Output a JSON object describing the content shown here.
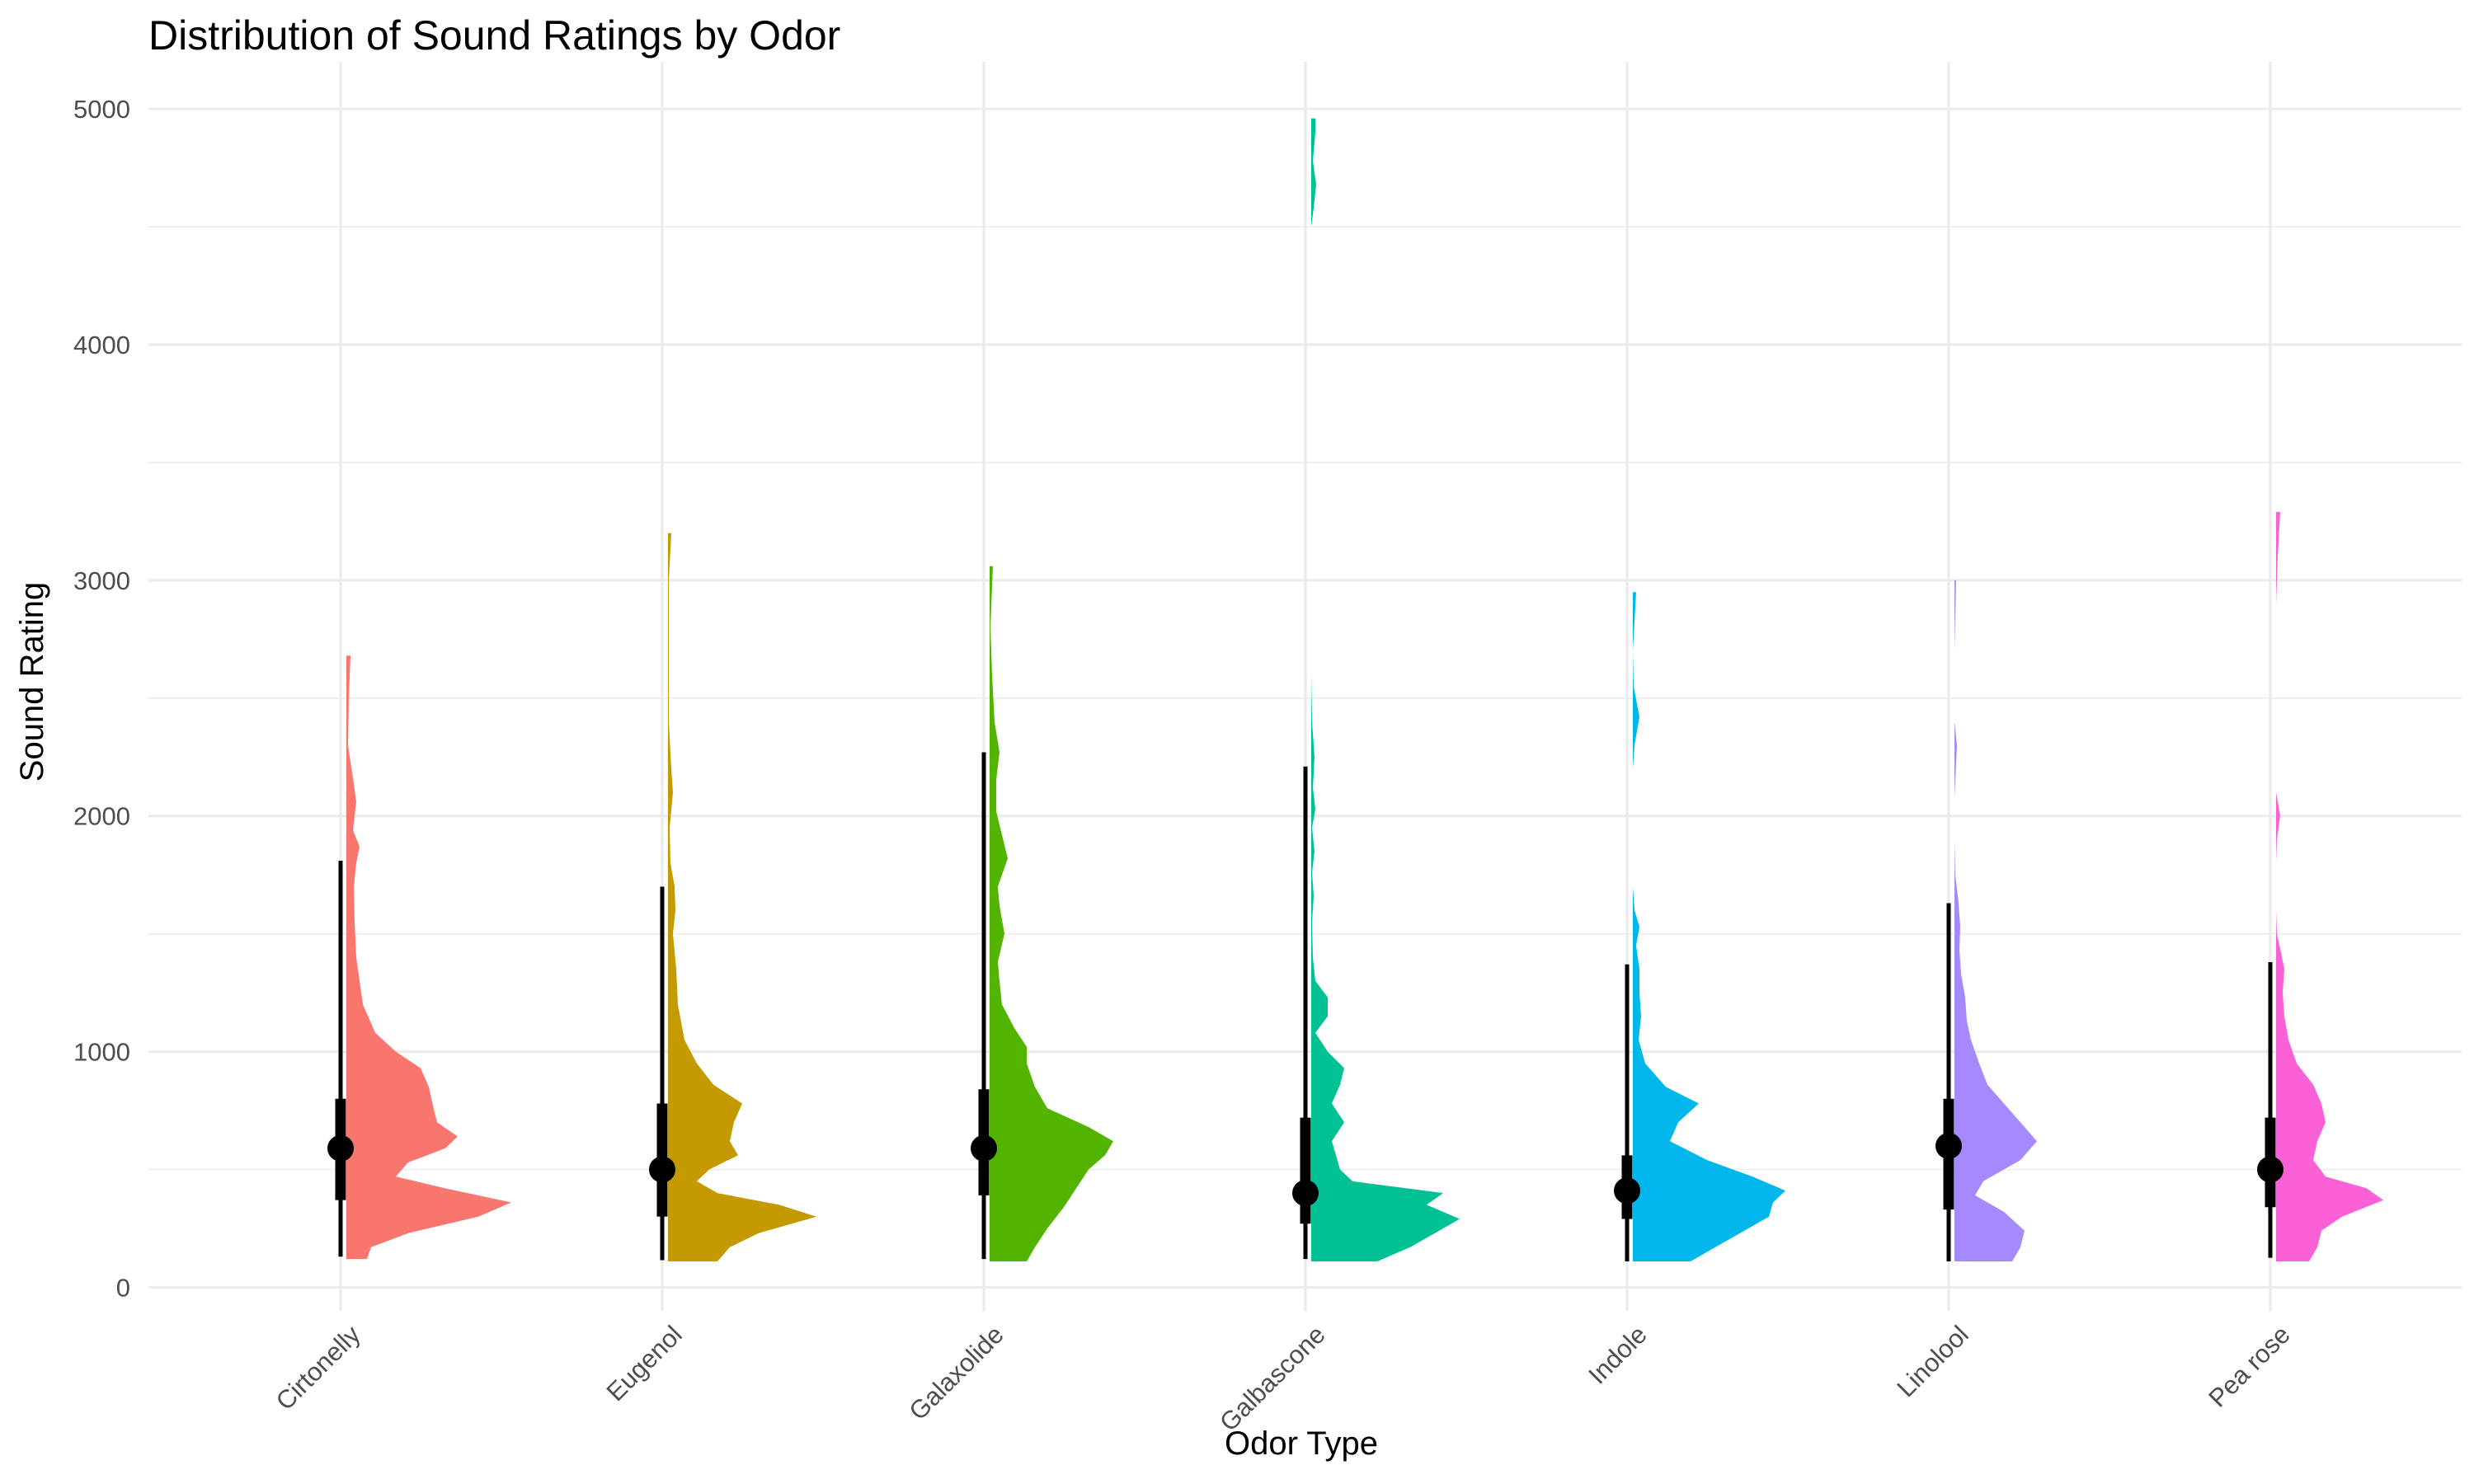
{
  "chart_data": {
    "type": "violin",
    "title": "Distribution of Sound Ratings by Odor",
    "xlabel": "Odor Type",
    "ylabel": "Sound Rating",
    "ylim": [
      -100,
      5200
    ],
    "yticks": [
      0,
      1000,
      2000,
      3000,
      4000,
      5000
    ],
    "grid": true,
    "legend": "none",
    "categories": [
      "Cirtonelly",
      "Eugenol",
      "Galaxolide",
      "Galbascone",
      "Indole",
      "Linolool",
      "Pea rose"
    ],
    "colors": [
      "#F8766D",
      "#C49A00",
      "#53B400",
      "#00C094",
      "#00B6EB",
      "#A58AFF",
      "#FB61D7"
    ],
    "series": [
      {
        "median": 590,
        "q1": 370,
        "q3": 800,
        "whisker_low": 130,
        "whisker_high": 1810,
        "max": 2680,
        "density": [
          [
            120,
            0.25
          ],
          [
            170,
            0.3
          ],
          [
            230,
            0.75
          ],
          [
            300,
            1.6
          ],
          [
            360,
            2.0
          ],
          [
            420,
            1.2
          ],
          [
            470,
            0.6
          ],
          [
            530,
            0.75
          ],
          [
            590,
            1.2
          ],
          [
            640,
            1.35
          ],
          [
            700,
            1.1
          ],
          [
            770,
            1.05
          ],
          [
            850,
            1.0
          ],
          [
            930,
            0.9
          ],
          [
            1000,
            0.6
          ],
          [
            1080,
            0.35
          ],
          [
            1200,
            0.2
          ],
          [
            1400,
            0.12
          ],
          [
            1550,
            0.1
          ],
          [
            1700,
            0.09
          ],
          [
            1800,
            0.12
          ],
          [
            1870,
            0.16
          ],
          [
            1940,
            0.08
          ],
          [
            2060,
            0.12
          ],
          [
            2160,
            0.08
          ],
          [
            2300,
            0.02
          ],
          [
            2500,
            0.03
          ],
          [
            2680,
            0.05
          ]
        ]
      },
      {
        "median": 500,
        "q1": 300,
        "q3": 780,
        "whisker_low": 115,
        "whisker_high": 1700,
        "max": 3200,
        "density": [
          [
            110,
            0.6
          ],
          [
            170,
            0.75
          ],
          [
            230,
            1.1
          ],
          [
            300,
            1.8
          ],
          [
            350,
            1.35
          ],
          [
            400,
            0.6
          ],
          [
            450,
            0.35
          ],
          [
            500,
            0.5
          ],
          [
            560,
            0.85
          ],
          [
            620,
            0.75
          ],
          [
            700,
            0.8
          ],
          [
            780,
            0.9
          ],
          [
            860,
            0.55
          ],
          [
            950,
            0.35
          ],
          [
            1050,
            0.2
          ],
          [
            1200,
            0.12
          ],
          [
            1350,
            0.1
          ],
          [
            1500,
            0.06
          ],
          [
            1600,
            0.09
          ],
          [
            1700,
            0.08
          ],
          [
            1800,
            0.03
          ],
          [
            1950,
            0.02
          ],
          [
            2100,
            0.06
          ],
          [
            2200,
            0.04
          ],
          [
            2400,
            0.01
          ],
          [
            2800,
            0.01
          ],
          [
            3000,
            0.01
          ],
          [
            3200,
            0.04
          ]
        ]
      },
      {
        "median": 590,
        "q1": 390,
        "q3": 840,
        "whisker_low": 120,
        "whisker_high": 2270,
        "max": 3060,
        "density": [
          [
            110,
            0.45
          ],
          [
            170,
            0.55
          ],
          [
            250,
            0.7
          ],
          [
            340,
            0.9
          ],
          [
            420,
            1.05
          ],
          [
            500,
            1.2
          ],
          [
            560,
            1.4
          ],
          [
            620,
            1.5
          ],
          [
            680,
            1.2
          ],
          [
            760,
            0.7
          ],
          [
            850,
            0.55
          ],
          [
            950,
            0.45
          ],
          [
            1020,
            0.45
          ],
          [
            1100,
            0.3
          ],
          [
            1200,
            0.15
          ],
          [
            1300,
            0.12
          ],
          [
            1380,
            0.1
          ],
          [
            1500,
            0.18
          ],
          [
            1620,
            0.12
          ],
          [
            1700,
            0.1
          ],
          [
            1820,
            0.22
          ],
          [
            1920,
            0.15
          ],
          [
            2020,
            0.08
          ],
          [
            2150,
            0.08
          ],
          [
            2270,
            0.12
          ],
          [
            2400,
            0.06
          ],
          [
            2600,
            0.03
          ],
          [
            2800,
            0.01
          ],
          [
            3060,
            0.04
          ]
        ]
      },
      {
        "median": 400,
        "q1": 270,
        "q3": 720,
        "whisker_low": 120,
        "whisker_high": 2210,
        "max": 4960,
        "density": [
          [
            110,
            0.8
          ],
          [
            170,
            1.2
          ],
          [
            230,
            1.5
          ],
          [
            290,
            1.8
          ],
          [
            350,
            1.4
          ],
          [
            400,
            1.6
          ],
          [
            450,
            0.5
          ],
          [
            500,
            0.35
          ],
          [
            560,
            0.3
          ],
          [
            620,
            0.25
          ],
          [
            700,
            0.4
          ],
          [
            780,
            0.25
          ],
          [
            860,
            0.35
          ],
          [
            930,
            0.4
          ],
          [
            1000,
            0.2
          ],
          [
            1080,
            0.05
          ],
          [
            1150,
            0.2
          ],
          [
            1230,
            0.2
          ],
          [
            1300,
            0.05
          ],
          [
            1400,
            0.02
          ],
          [
            1550,
            0.01
          ],
          [
            1660,
            0.03
          ],
          [
            1760,
            0.01
          ],
          [
            1850,
            0.04
          ],
          [
            1950,
            0.01
          ],
          [
            2030,
            0.05
          ],
          [
            2120,
            0.02
          ],
          [
            2250,
            0.04
          ],
          [
            2400,
            0.01
          ],
          [
            2600,
            0.0
          ],
          [
            4500,
            0.0
          ],
          [
            4580,
            0.03
          ],
          [
            4680,
            0.06
          ],
          [
            4780,
            0.02
          ],
          [
            4900,
            0.05
          ],
          [
            4960,
            0.05
          ]
        ]
      },
      {
        "median": 410,
        "q1": 290,
        "q3": 560,
        "whisker_low": 110,
        "whisker_high": 1370,
        "max": 2960,
        "density": [
          [
            110,
            0.7
          ],
          [
            170,
            1.0
          ],
          [
            230,
            1.3
          ],
          [
            300,
            1.65
          ],
          [
            360,
            1.7
          ],
          [
            410,
            1.85
          ],
          [
            470,
            1.45
          ],
          [
            540,
            0.9
          ],
          [
            620,
            0.45
          ],
          [
            700,
            0.55
          ],
          [
            780,
            0.8
          ],
          [
            850,
            0.4
          ],
          [
            950,
            0.15
          ],
          [
            1050,
            0.07
          ],
          [
            1150,
            0.1
          ],
          [
            1250,
            0.08
          ],
          [
            1350,
            0.08
          ],
          [
            1450,
            0.04
          ],
          [
            1530,
            0.08
          ],
          [
            1600,
            0.02
          ],
          [
            1700,
            0.0
          ],
          [
            2200,
            0.0
          ],
          [
            2300,
            0.02
          ],
          [
            2420,
            0.08
          ],
          [
            2550,
            0.01
          ],
          [
            2700,
            0.0
          ],
          [
            2950,
            0.04
          ]
        ]
      },
      {
        "median": 600,
        "q1": 330,
        "q3": 800,
        "whisker_low": 110,
        "whisker_high": 1630,
        "max": 3000,
        "density": [
          [
            110,
            0.7
          ],
          [
            170,
            0.8
          ],
          [
            240,
            0.85
          ],
          [
            320,
            0.6
          ],
          [
            390,
            0.25
          ],
          [
            450,
            0.35
          ],
          [
            540,
            0.8
          ],
          [
            620,
            1.0
          ],
          [
            700,
            0.8
          ],
          [
            780,
            0.6
          ],
          [
            860,
            0.4
          ],
          [
            950,
            0.3
          ],
          [
            1050,
            0.2
          ],
          [
            1130,
            0.15
          ],
          [
            1230,
            0.13
          ],
          [
            1330,
            0.08
          ],
          [
            1430,
            0.06
          ],
          [
            1530,
            0.07
          ],
          [
            1630,
            0.05
          ],
          [
            1750,
            0.01
          ],
          [
            1900,
            0.0
          ],
          [
            2080,
            0.0
          ],
          [
            2150,
            0.01
          ],
          [
            2300,
            0.03
          ],
          [
            2400,
            0.0
          ],
          [
            2700,
            0.0
          ],
          [
            2850,
            0.01
          ],
          [
            3000,
            0.02
          ]
        ]
      },
      {
        "median": 500,
        "q1": 340,
        "q3": 720,
        "whisker_low": 125,
        "whisker_high": 1380,
        "max": 3290,
        "density": [
          [
            110,
            0.4
          ],
          [
            170,
            0.5
          ],
          [
            240,
            0.55
          ],
          [
            300,
            0.8
          ],
          [
            370,
            1.3
          ],
          [
            420,
            1.1
          ],
          [
            470,
            0.6
          ],
          [
            540,
            0.45
          ],
          [
            620,
            0.5
          ],
          [
            700,
            0.6
          ],
          [
            780,
            0.55
          ],
          [
            860,
            0.45
          ],
          [
            950,
            0.25
          ],
          [
            1050,
            0.15
          ],
          [
            1150,
            0.1
          ],
          [
            1250,
            0.08
          ],
          [
            1350,
            0.1
          ],
          [
            1420,
            0.06
          ],
          [
            1500,
            0.01
          ],
          [
            1600,
            0.0
          ],
          [
            1800,
            0.0
          ],
          [
            1900,
            0.01
          ],
          [
            2000,
            0.05
          ],
          [
            2100,
            0.0
          ],
          [
            2900,
            0.0
          ],
          [
            3000,
            0.01
          ],
          [
            3100,
            0.02
          ],
          [
            3290,
            0.05
          ]
        ]
      }
    ]
  }
}
